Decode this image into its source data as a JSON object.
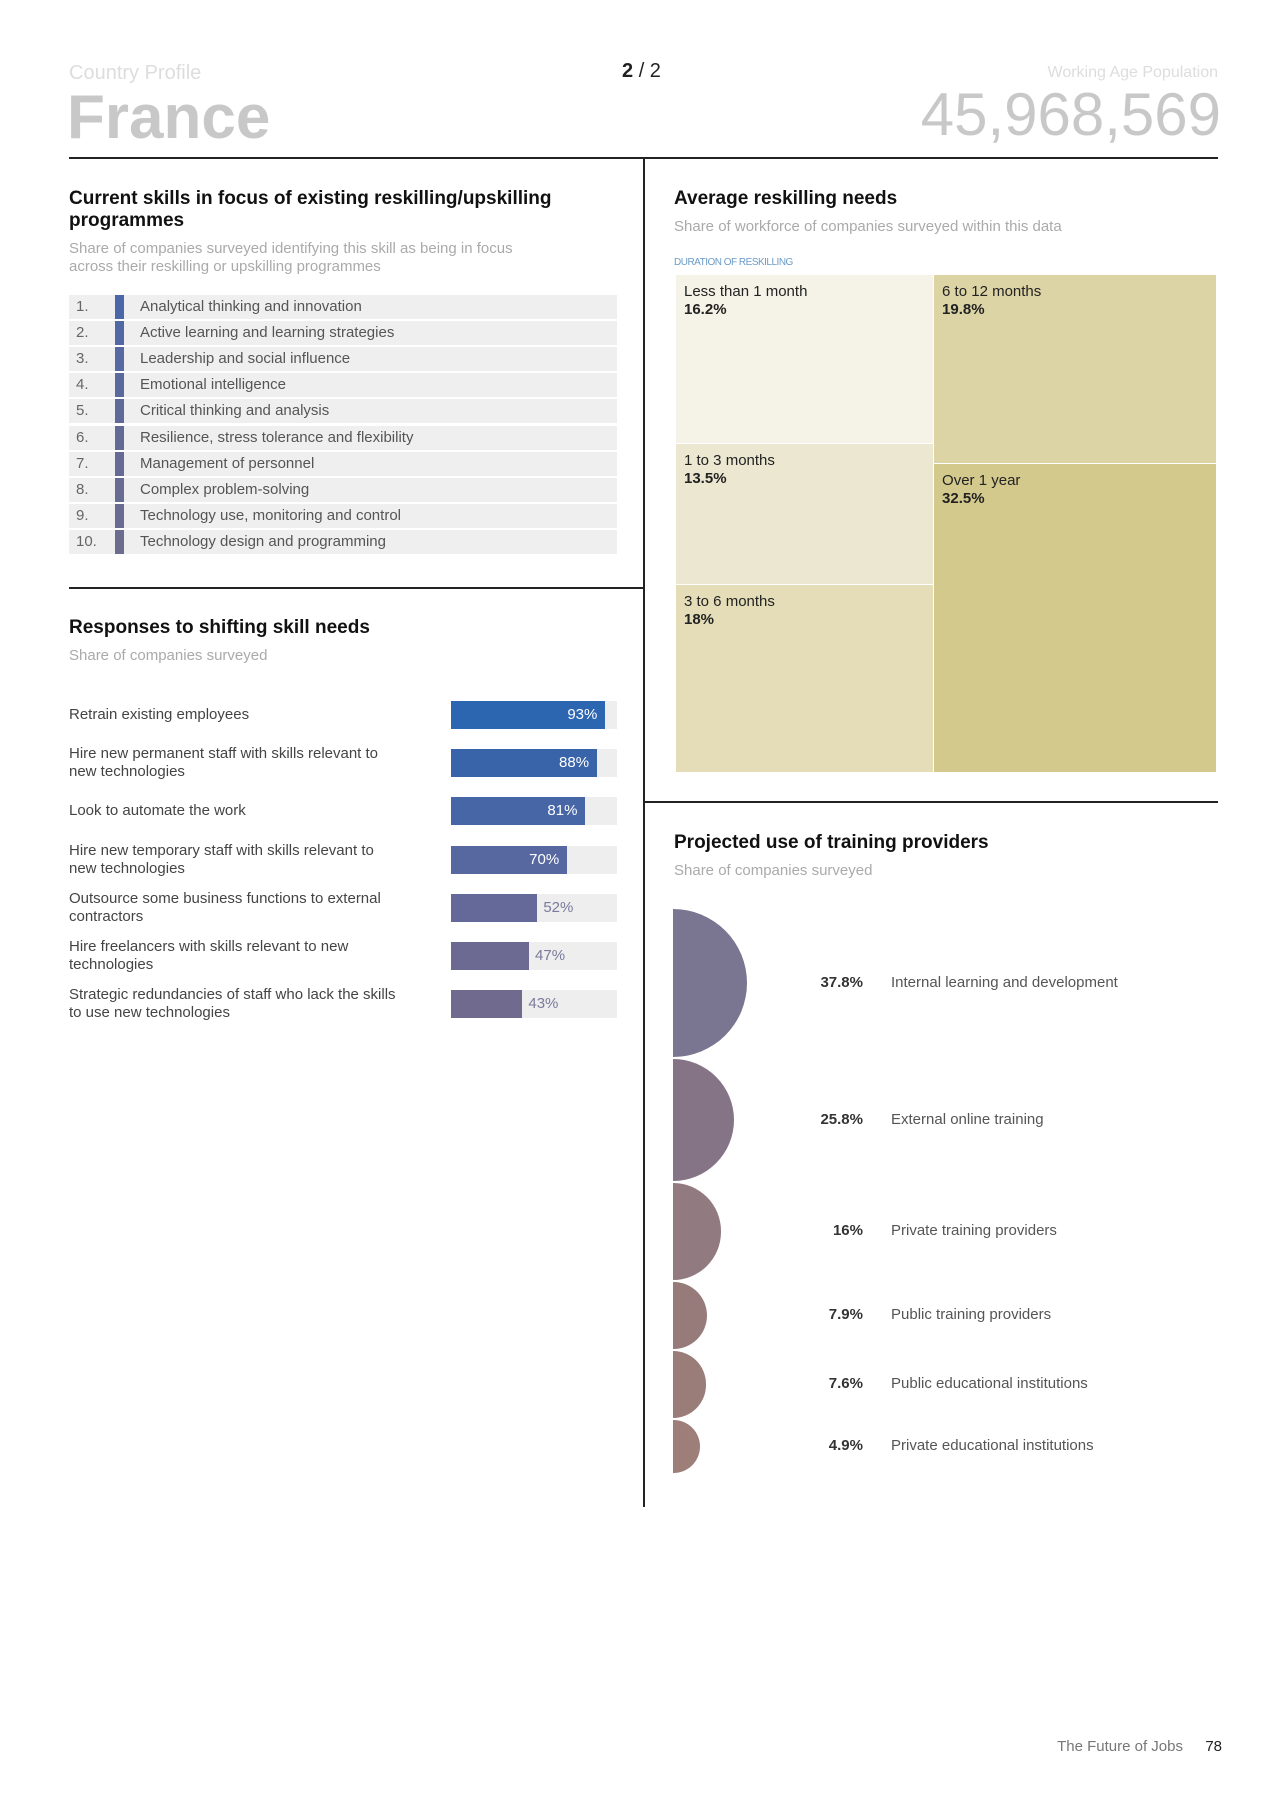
{
  "header": {
    "section": "Country Profile",
    "country": "France",
    "page_current": "2",
    "page_separator": "/ 2",
    "population_label": "Working Age Population",
    "population": "45,968,569"
  },
  "skills": {
    "title": "Current skills in focus of existing reskilling/upskilling programmes",
    "subtitle": "Share of companies surveyed identifying this skill as being in focus across their reskilling or upskilling programmes",
    "items": [
      {
        "rank": "1.",
        "skill": "Analytical thinking and innovation"
      },
      {
        "rank": "2.",
        "skill": "Active learning and learning strategies"
      },
      {
        "rank": "3.",
        "skill": "Leadership and social influence"
      },
      {
        "rank": "4.",
        "skill": "Emotional intelligence"
      },
      {
        "rank": "5.",
        "skill": "Critical thinking and analysis"
      },
      {
        "rank": "6.",
        "skill": "Resilience, stress tolerance and flexibility"
      },
      {
        "rank": "7.",
        "skill": "Management of personnel"
      },
      {
        "rank": "8.",
        "skill": "Complex problem-solving"
      },
      {
        "rank": "9.",
        "skill": "Technology use, monitoring and control"
      },
      {
        "rank": "10.",
        "skill": "Technology design and programming"
      }
    ]
  },
  "chart_data": [
    {
      "type": "bar",
      "title": "Responses to shifting skill needs",
      "subtitle": "Share of companies surveyed",
      "categories": [
        "Retrain existing employees",
        "Hire new permanent staff with skills relevant to new technologies",
        "Look to automate the work",
        "Hire new temporary staff with skills relevant to new technologies",
        "Outsource some business functions to external contractors",
        "Hire freelancers with skills relevant to new technologies",
        "Strategic redundancies of staff who lack the skills to use new technologies"
      ],
      "values": [
        93,
        88,
        81,
        70,
        52,
        47,
        43
      ],
      "value_labels": [
        "93%",
        "88%",
        "81%",
        "70%",
        "52%",
        "47%",
        "43%"
      ],
      "colors": [
        "#2c65b0",
        "#3a64aa",
        "#4766a6",
        "#5768a0",
        "#65699a",
        "#6c6a93",
        "#706b8e"
      ],
      "xlim": [
        0,
        100
      ]
    },
    {
      "type": "treemap",
      "title": "Average reskilling needs",
      "subtitle": "Share of workforce of companies surveyed within this data",
      "label": "DURATION OF RESKILLING",
      "categories": [
        "Less than 1 month",
        "1 to 3 months",
        "3 to 6 months",
        "6 to 12 months",
        "Over 1 year"
      ],
      "values": [
        16.2,
        13.5,
        18,
        19.8,
        32.5
      ],
      "value_labels": [
        "16.2%",
        "13.5%",
        "18%",
        "19.8%",
        "32.5%"
      ],
      "colors": [
        "#f5f3e7",
        "#ebe7d1",
        "#e4ddb8",
        "#ddd4a6",
        "#d4c98d"
      ]
    },
    {
      "type": "half-circle",
      "title": "Projected use of training providers",
      "subtitle": "Share of companies surveyed",
      "categories": [
        "Internal learning and development",
        "External online training",
        "Private training providers",
        "Public training providers",
        "Public educational institutions",
        "Private educational institutions"
      ],
      "values": [
        37.8,
        25.8,
        16,
        7.9,
        7.6,
        4.9
      ],
      "value_labels": [
        "37.8%",
        "25.8%",
        "16%",
        "7.9%",
        "7.6%",
        "4.9%"
      ],
      "colors": [
        "#7a7590",
        "#857386",
        "#917a80",
        "#977b7a",
        "#9a7c78",
        "#9d7e78"
      ]
    }
  ],
  "footer": {
    "publication": "The Future of Jobs",
    "page": "78"
  }
}
